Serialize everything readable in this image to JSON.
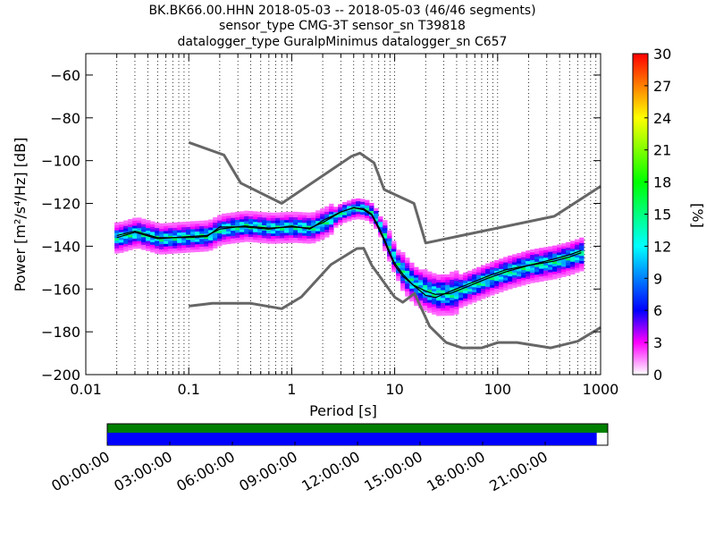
{
  "title": {
    "line1": "BK.BK66.00.HHN   2018-05-03 -- 2018-05-03  (46/46 segments)",
    "line2": "sensor_type CMG-3T sensor_sn T39818",
    "line3": "datalogger_type GuralpMinimus datalogger_sn C657"
  },
  "chart_data": {
    "type": "heatmap",
    "xlabel": "Period [s]",
    "ylabel": "Power [m²/s⁴/Hz] [dB]",
    "xscale": "log",
    "xlim": [
      0.01,
      1000
    ],
    "ylim": [
      -200,
      -50
    ],
    "xticks": [
      {
        "value": 0.01,
        "label": "0.01"
      },
      {
        "value": 0.1,
        "label": "0.1"
      },
      {
        "value": 1,
        "label": "1"
      },
      {
        "value": 10,
        "label": "10"
      },
      {
        "value": 100,
        "label": "100"
      },
      {
        "value": 1000,
        "label": "1000"
      }
    ],
    "yticks": [
      {
        "value": -60,
        "label": "−60"
      },
      {
        "value": -80,
        "label": "−80"
      },
      {
        "value": -100,
        "label": "−100"
      },
      {
        "value": -120,
        "label": "−120"
      },
      {
        "value": -140,
        "label": "−140"
      },
      {
        "value": -160,
        "label": "−160"
      },
      {
        "value": -180,
        "label": "−180"
      },
      {
        "value": -200,
        "label": "−200"
      }
    ],
    "grid": "dotted vertical",
    "colorbar": {
      "label": "[%]",
      "range": [
        0,
        30
      ],
      "ticks": [
        {
          "value": 0,
          "label": "0"
        },
        {
          "value": 3,
          "label": "3"
        },
        {
          "value": 6,
          "label": "6"
        },
        {
          "value": 9,
          "label": "9"
        },
        {
          "value": 12,
          "label": "12"
        },
        {
          "value": 15,
          "label": "15"
        },
        {
          "value": 18,
          "label": "18"
        },
        {
          "value": 21,
          "label": "21"
        },
        {
          "value": 24,
          "label": "24"
        },
        {
          "value": 27,
          "label": "27"
        },
        {
          "value": 30,
          "label": "30"
        }
      ]
    },
    "nhnm": [
      [
        0.1,
        -91.5
      ],
      [
        0.22,
        -97.4
      ],
      [
        0.32,
        -110.5
      ],
      [
        0.8,
        -120
      ],
      [
        3.8,
        -98
      ],
      [
        4.6,
        -96.5
      ],
      [
        6.3,
        -101
      ],
      [
        7.9,
        -113.5
      ],
      [
        15.4,
        -120
      ],
      [
        20,
        -138.5
      ],
      [
        354.8,
        -126
      ],
      [
        1000,
        -112
      ]
    ],
    "nlnm": [
      [
        0.1,
        -168
      ],
      [
        0.17,
        -166.7
      ],
      [
        0.4,
        -166.7
      ],
      [
        0.8,
        -169.2
      ],
      [
        1.24,
        -163.7
      ],
      [
        2.4,
        -148.6
      ],
      [
        4.3,
        -141.1
      ],
      [
        5,
        -141
      ],
      [
        6,
        -149
      ],
      [
        10,
        -163.8
      ],
      [
        12,
        -166.2
      ],
      [
        15.6,
        -162.1
      ],
      [
        21.9,
        -177.5
      ],
      [
        31.6,
        -185
      ],
      [
        45,
        -187.5
      ],
      [
        70,
        -187.5
      ],
      [
        101,
        -185
      ],
      [
        154,
        -185
      ],
      [
        328,
        -187.5
      ],
      [
        600,
        -184.4
      ],
      [
        1000,
        -178
      ]
    ],
    "mean": [
      [
        0.02,
        -136
      ],
      [
        0.03,
        -133.5
      ],
      [
        0.05,
        -136.5
      ],
      [
        0.1,
        -135.5
      ],
      [
        0.15,
        -135
      ],
      [
        0.2,
        -132
      ],
      [
        0.35,
        -130.5
      ],
      [
        0.6,
        -131.5
      ],
      [
        1,
        -131
      ],
      [
        1.5,
        -131.5
      ],
      [
        2,
        -129
      ],
      [
        3,
        -124
      ],
      [
        4,
        -122
      ],
      [
        5,
        -122.5
      ],
      [
        6,
        -125
      ],
      [
        7,
        -131
      ],
      [
        8,
        -137
      ],
      [
        9,
        -143
      ],
      [
        10,
        -148
      ],
      [
        12,
        -153
      ],
      [
        15,
        -158
      ],
      [
        20,
        -161
      ],
      [
        25,
        -162.5
      ],
      [
        35,
        -162
      ],
      [
        50,
        -159
      ],
      [
        80,
        -155
      ],
      [
        120,
        -152
      ],
      [
        200,
        -149
      ],
      [
        350,
        -147
      ],
      [
        500,
        -145
      ],
      [
        650,
        -143
      ]
    ],
    "mode": [
      [
        0.02,
        -135
      ],
      [
        0.03,
        -133
      ],
      [
        0.05,
        -136
      ],
      [
        0.1,
        -136
      ],
      [
        0.15,
        -135.5
      ],
      [
        0.2,
        -131
      ],
      [
        0.35,
        -131
      ],
      [
        0.6,
        -132
      ],
      [
        1,
        -130.5
      ],
      [
        1.5,
        -132
      ],
      [
        2,
        -128
      ],
      [
        3,
        -124
      ],
      [
        4,
        -122
      ],
      [
        5,
        -123
      ],
      [
        6,
        -125.5
      ],
      [
        7,
        -132
      ],
      [
        8,
        -138
      ],
      [
        9,
        -144
      ],
      [
        10,
        -149
      ],
      [
        12,
        -154
      ],
      [
        15,
        -158
      ],
      [
        20,
        -163
      ],
      [
        25,
        -164
      ],
      [
        35,
        -161
      ],
      [
        50,
        -158
      ],
      [
        80,
        -154
      ],
      [
        120,
        -151
      ],
      [
        200,
        -149
      ],
      [
        350,
        -146
      ],
      [
        500,
        -144
      ],
      [
        650,
        -142
      ]
    ]
  },
  "timeline": {
    "tick_labels": [
      "00:00:00",
      "03:00:00",
      "06:00:00",
      "09:00:00",
      "12:00:00",
      "15:00:00",
      "18:00:00",
      "21:00:00"
    ],
    "coverage_fraction": 0.978,
    "colors": {
      "top_bar": "#008000",
      "data_bar": "#0000ff"
    }
  },
  "colors": {
    "noise_model": "#666666",
    "statistic": "#000000"
  }
}
